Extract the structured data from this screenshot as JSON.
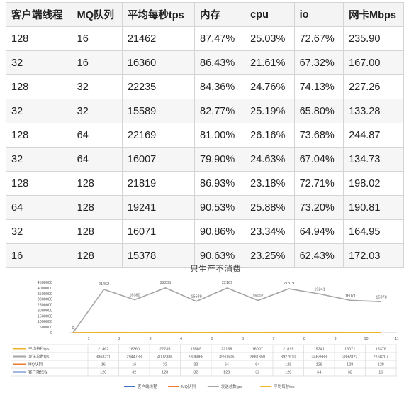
{
  "table": {
    "headers": [
      "客户端线程",
      "MQ队列",
      "平均每秒tps",
      "内存",
      "cpu",
      "io",
      "网卡Mbps"
    ],
    "rows": [
      [
        "128",
        "16",
        "21462",
        "87.47%",
        "25.03%",
        "72.67%",
        "235.90"
      ],
      [
        "32",
        "16",
        "16360",
        "86.43%",
        "21.61%",
        "67.32%",
        "167.00"
      ],
      [
        "128",
        "32",
        "22235",
        "84.36%",
        "24.76%",
        "74.13%",
        "227.26"
      ],
      [
        "32",
        "32",
        "15589",
        "82.77%",
        "25.19%",
        "65.80%",
        "133.28"
      ],
      [
        "128",
        "64",
        "22169",
        "81.00%",
        "26.16%",
        "73.68%",
        "244.87"
      ],
      [
        "32",
        "64",
        "16007",
        "79.90%",
        "24.63%",
        "67.04%",
        "134.73"
      ],
      [
        "128",
        "128",
        "21819",
        "86.93%",
        "23.18%",
        "72.71%",
        "198.02"
      ],
      [
        "64",
        "128",
        "19241",
        "90.53%",
        "25.88%",
        "73.20%",
        "190.81"
      ],
      [
        "32",
        "128",
        "16071",
        "90.86%",
        "23.34%",
        "64.94%",
        "164.95"
      ],
      [
        "16",
        "128",
        "15378",
        "90.63%",
        "23.25%",
        "62.43%",
        "172.03"
      ]
    ]
  },
  "chart_data": {
    "type": "line",
    "title": "只生产不消费",
    "x": [
      "1",
      "2",
      "3",
      "4",
      "5",
      "6",
      "7",
      "8",
      "9",
      "10",
      "11"
    ],
    "ylim": [
      0,
      4500000
    ],
    "yticks": [
      "4500000",
      "4000000",
      "3500000",
      "3000000",
      "2500000",
      "2000000",
      "1500000",
      "1000000",
      "500000",
      "0"
    ],
    "series": [
      {
        "name": "平均每秒tps",
        "color": "#f0b429",
        "values": [
          0,
          21462,
          16360,
          22235,
          15589,
          22169,
          16007,
          21819,
          19241,
          16071,
          15378
        ],
        "labels": [
          "0",
          "21462",
          "16360",
          "22235",
          "15589",
          "22169",
          "16007",
          "21819",
          "19241",
          "16071",
          "15378"
        ]
      },
      {
        "name": "发送总数tps",
        "color": "#a5a5a5",
        "values": [
          0,
          3863211,
          2944788,
          4002386,
          2806068,
          3990606,
          2881359,
          3927610,
          3463589,
          2892822,
          2768207
        ]
      },
      {
        "name": "MQ队列",
        "color": "#ed7d31",
        "values": [
          0,
          16,
          16,
          32,
          32,
          64,
          64,
          128,
          128,
          128,
          128
        ]
      },
      {
        "name": "客户端线程",
        "color": "#4472c4",
        "values": [
          0,
          128,
          32,
          128,
          32,
          128,
          32,
          128,
          64,
          32,
          16
        ]
      }
    ],
    "data_table": {
      "rows": [
        {
          "name": "平均每秒tps",
          "color": "#f0b429",
          "cells": [
            "21462",
            "16360",
            "22235",
            "15589",
            "22169",
            "16007",
            "21819",
            "19241",
            "16071",
            "15378"
          ]
        },
        {
          "name": "发送总数tps",
          "color": "#a5a5a5",
          "cells": [
            "3863211",
            "2944788",
            "4002386",
            "2806068",
            "3990606",
            "2881359",
            "3927610",
            "3463589",
            "2892822",
            "2768207"
          ]
        },
        {
          "name": "MQ队列",
          "color": "#ed7d31",
          "cells": [
            "16",
            "16",
            "32",
            "32",
            "64",
            "64",
            "128",
            "128",
            "128",
            "128"
          ]
        },
        {
          "name": "客户端线程",
          "color": "#4472c4",
          "cells": [
            "128",
            "32",
            "128",
            "32",
            "128",
            "32",
            "128",
            "64",
            "32",
            "16"
          ]
        }
      ]
    },
    "legend": [
      {
        "name": "客户端线程",
        "color": "#4472c4"
      },
      {
        "name": "MQ队列",
        "color": "#ed7d31"
      },
      {
        "name": "发送总数tps",
        "color": "#a5a5a5"
      },
      {
        "name": "平均每秒tps",
        "color": "#f0b429"
      }
    ],
    "legend_position": "bottom",
    "grid": false
  }
}
